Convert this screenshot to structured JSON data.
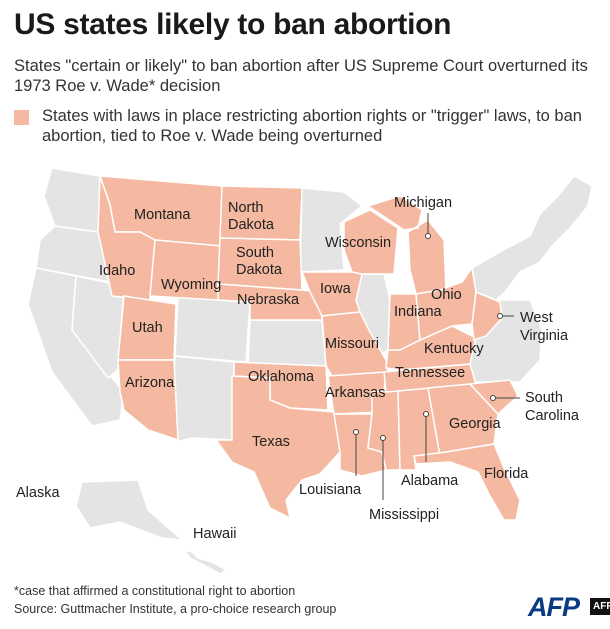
{
  "title": "US states likely to ban abortion",
  "subtitle": "States \"certain or likely\" to ban abortion after US Supreme Court overturned its 1973 Roe v. Wade* decision",
  "legend": {
    "label": "States with laws in place restricting abortion rights or \"trigger\" laws, to ban abortion, tied to Roe v. Wade being overturned",
    "color": "#f4b9a0"
  },
  "colors": {
    "highlight": "#f4b9a0",
    "other": "#e4e4e4",
    "border": "#ffffff"
  },
  "states": {
    "montana": "Montana",
    "north_dakota": "North Dakota",
    "south_dakota": "South Dakota",
    "idaho": "Idaho",
    "wyoming": "Wyoming",
    "nebraska": "Nebraska",
    "iowa": "Iowa",
    "wisconsin": "Wisconsin",
    "michigan": "Michigan",
    "utah": "Utah",
    "arizona": "Arizona",
    "oklahoma": "Oklahoma",
    "texas": "Texas",
    "missouri": "Missouri",
    "arkansas": "Arkansas",
    "louisiana": "Louisiana",
    "mississippi": "Mississippi",
    "alabama": "Alabama",
    "tennessee": "Tennessee",
    "kentucky": "Kentucky",
    "indiana": "Indiana",
    "ohio": "Ohio",
    "west_virginia": "West Virginia",
    "georgia": "Georgia",
    "south_carolina": "South Carolina",
    "florida": "Florida",
    "alaska": "Alaska",
    "hawaii": "Hawaii"
  },
  "footnote": "*case that affirmed a constitutional right to abortion",
  "source": "Source: Guttmacher Institute, a pro-choice research group",
  "credit": {
    "logo": "AFP",
    "tag": "AFP"
  }
}
